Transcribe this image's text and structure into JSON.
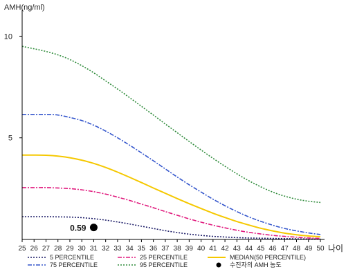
{
  "chart_data": {
    "type": "line",
    "title": "",
    "ylabel": "AMH(ng/ml)",
    "xlabel": "나이",
    "ylim": [
      0,
      11
    ],
    "xlim": [
      25,
      50
    ],
    "x_ticks": [
      25,
      26,
      27,
      28,
      29,
      30,
      31,
      32,
      33,
      34,
      35,
      36,
      37,
      38,
      39,
      40,
      41,
      42,
      43,
      44,
      45,
      46,
      47,
      48,
      49,
      50
    ],
    "y_ticks": [
      5,
      10
    ],
    "grid": false,
    "legend_position": "bottom",
    "x": [
      25,
      26,
      27,
      28,
      29,
      30,
      31,
      32,
      33,
      34,
      35,
      36,
      37,
      38,
      39,
      40,
      41,
      42,
      43,
      44,
      45,
      46,
      47,
      48,
      49,
      50
    ],
    "series": [
      {
        "name": "5 PERCENTILE",
        "color": "#1a1a66",
        "dash": "dotted",
        "values": [
          1.12,
          1.12,
          1.12,
          1.11,
          1.1,
          1.07,
          1.02,
          0.95,
          0.86,
          0.76,
          0.65,
          0.54,
          0.43,
          0.34,
          0.26,
          0.2,
          0.15,
          0.12,
          0.09,
          0.07,
          0.06,
          0.05,
          0.04,
          0.03,
          0.02,
          0.02
        ]
      },
      {
        "name": "25 PERCENTILE",
        "color": "#e0197d",
        "dash": "dash-dot",
        "values": [
          2.55,
          2.55,
          2.55,
          2.53,
          2.5,
          2.44,
          2.35,
          2.23,
          2.08,
          1.92,
          1.74,
          1.56,
          1.37,
          1.19,
          1.01,
          0.85,
          0.7,
          0.57,
          0.45,
          0.35,
          0.27,
          0.2,
          0.15,
          0.11,
          0.07,
          0.05
        ]
      },
      {
        "name": "MEDIAN(50 PERCENTILE)",
        "color": "#f5c800",
        "dash": "solid",
        "values": [
          4.15,
          4.15,
          4.14,
          4.1,
          4.02,
          3.9,
          3.74,
          3.54,
          3.31,
          3.06,
          2.8,
          2.53,
          2.27,
          2.01,
          1.76,
          1.52,
          1.29,
          1.08,
          0.88,
          0.71,
          0.55,
          0.42,
          0.31,
          0.23,
          0.17,
          0.13
        ]
      },
      {
        "name": "75 PERCENTILE",
        "color": "#3355cc",
        "dash": "dash-dot",
        "values": [
          6.15,
          6.15,
          6.15,
          6.12,
          6.0,
          5.85,
          5.62,
          5.33,
          5.0,
          4.64,
          4.26,
          3.87,
          3.47,
          3.07,
          2.69,
          2.33,
          1.98,
          1.66,
          1.37,
          1.11,
          0.89,
          0.7,
          0.54,
          0.42,
          0.32,
          0.24
        ]
      },
      {
        "name": "95 PERCENTILE",
        "color": "#2e8b3a",
        "dash": "dotted",
        "values": [
          9.5,
          9.38,
          9.25,
          9.08,
          8.85,
          8.55,
          8.2,
          7.8,
          7.4,
          6.98,
          6.55,
          6.12,
          5.68,
          5.25,
          4.82,
          4.4,
          3.99,
          3.6,
          3.23,
          2.89,
          2.59,
          2.33,
          2.13,
          1.98,
          1.88,
          1.82
        ]
      }
    ],
    "marker": {
      "name": "수진자의 AMH 농도",
      "x": 31,
      "y": 0.59,
      "label": "0.59",
      "color": "#000000"
    }
  }
}
